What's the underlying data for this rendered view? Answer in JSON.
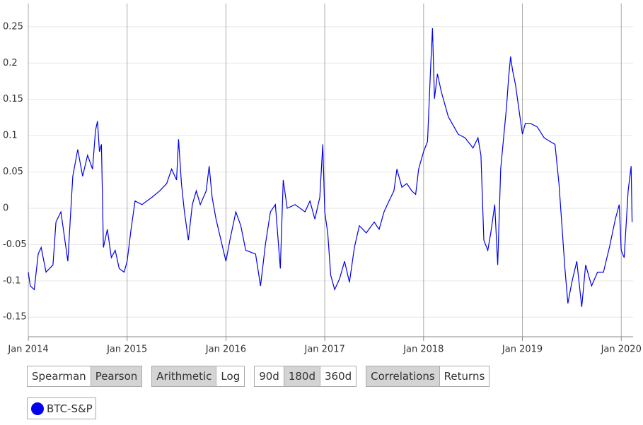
{
  "chart_data": {
    "type": "line",
    "x": [
      2014.0,
      2014.02,
      2014.06,
      2014.1,
      2014.13,
      2014.18,
      2014.25,
      2014.28,
      2014.33,
      2014.36,
      2014.4,
      2014.45,
      2014.5,
      2014.55,
      2014.6,
      2014.65,
      2014.68,
      2014.7,
      2014.72,
      2014.74,
      2014.76,
      2014.8,
      2014.84,
      2014.88,
      2014.92,
      2014.97,
      2015.0,
      2015.04,
      2015.08,
      2015.15,
      2015.25,
      2015.33,
      2015.4,
      2015.45,
      2015.5,
      2015.52,
      2015.55,
      2015.58,
      2015.62,
      2015.66,
      2015.7,
      2015.74,
      2015.8,
      2015.83,
      2015.86,
      2015.9,
      2015.95,
      2016.0,
      2016.04,
      2016.1,
      2016.15,
      2016.2,
      2016.3,
      2016.35,
      2016.4,
      2016.45,
      2016.5,
      2016.55,
      2016.58,
      2016.62,
      2016.7,
      2016.8,
      2016.85,
      2016.9,
      2016.95,
      2016.98,
      2017.0,
      2017.03,
      2017.06,
      2017.1,
      2017.15,
      2017.2,
      2017.25,
      2017.3,
      2017.35,
      2017.42,
      2017.5,
      2017.55,
      2017.6,
      2017.65,
      2017.7,
      2017.73,
      2017.78,
      2017.83,
      2017.88,
      2017.92,
      2017.95,
      2018.0,
      2018.04,
      2018.07,
      2018.09,
      2018.11,
      2018.14,
      2018.18,
      2018.25,
      2018.35,
      2018.42,
      2018.5,
      2018.55,
      2018.58,
      2018.61,
      2018.65,
      2018.68,
      2018.72,
      2018.75,
      2018.78,
      2018.82,
      2018.84,
      2018.86,
      2018.88,
      2018.9,
      2018.93,
      2018.96,
      2019.0,
      2019.03,
      2019.08,
      2019.15,
      2019.22,
      2019.28,
      2019.33,
      2019.37,
      2019.4,
      2019.43,
      2019.46,
      2019.5,
      2019.55,
      2019.6,
      2019.64,
      2019.7,
      2019.76,
      2019.82,
      2019.88,
      2019.94,
      2019.98,
      2020.0,
      2020.03,
      2020.07,
      2020.1,
      2020.11
    ],
    "series": [
      {
        "name": "BTC-S&P",
        "color": "#0000ee",
        "values": [
          -0.088,
          -0.107,
          -0.112,
          -0.063,
          -0.054,
          -0.088,
          -0.078,
          -0.019,
          -0.005,
          -0.034,
          -0.073,
          0.044,
          0.081,
          0.044,
          0.073,
          0.054,
          0.107,
          0.12,
          0.078,
          0.088,
          -0.054,
          -0.029,
          -0.068,
          -0.058,
          -0.083,
          -0.088,
          -0.073,
          -0.029,
          0.01,
          0.005,
          0.015,
          0.024,
          0.034,
          0.054,
          0.039,
          0.095,
          0.034,
          -0.005,
          -0.044,
          0.005,
          0.024,
          0.005,
          0.024,
          0.058,
          0.015,
          -0.015,
          -0.044,
          -0.073,
          -0.044,
          -0.005,
          -0.024,
          -0.058,
          -0.063,
          -0.107,
          -0.049,
          -0.005,
          0.005,
          -0.083,
          0.039,
          0,
          0.005,
          -0.005,
          0.01,
          -0.015,
          0.015,
          0.088,
          -0.005,
          -0.034,
          -0.092,
          -0.112,
          -0.097,
          -0.073,
          -0.102,
          -0.054,
          -0.024,
          -0.034,
          -0.019,
          -0.029,
          -0.005,
          0.01,
          0.024,
          0.054,
          0.029,
          0.034,
          0.024,
          0.019,
          0.054,
          0.078,
          0.092,
          0.19,
          0.248,
          0.151,
          0.185,
          0.16,
          0.126,
          0.102,
          0.097,
          0.083,
          0.097,
          0.073,
          -0.044,
          -0.058,
          -0.034,
          0.005,
          -0.078,
          0.054,
          0.112,
          0.141,
          0.18,
          0.209,
          0.19,
          0.17,
          0.141,
          0.102,
          0.117,
          0.117,
          0.112,
          0.097,
          0.092,
          0.088,
          0.034,
          -0.024,
          -0.083,
          -0.131,
          -0.102,
          -0.073,
          -0.136,
          -0.078,
          -0.107,
          -0.088,
          -0.088,
          -0.054,
          -0.015,
          0.005,
          -0.058,
          -0.068,
          0.024,
          0.058,
          -0.019
        ]
      }
    ],
    "xlim": [
      2014.0,
      2020.12
    ],
    "ylim": [
      -0.177,
      0.282
    ],
    "xticks": [
      {
        "value": 2014,
        "label": "Jan 2014"
      },
      {
        "value": 2015,
        "label": "Jan 2015"
      },
      {
        "value": 2016,
        "label": "Jan 2016"
      },
      {
        "value": 2017,
        "label": "Jan 2017"
      },
      {
        "value": 2018,
        "label": "Jan 2018"
      },
      {
        "value": 2019,
        "label": "Jan 2019"
      },
      {
        "value": 2020,
        "label": "Jan 2020"
      }
    ],
    "yticks": [
      -0.15,
      -0.1,
      -0.05,
      0,
      0.05,
      0.1,
      0.15,
      0.2,
      0.25
    ],
    "grid": true
  },
  "controls": [
    {
      "buttons": [
        "Spearman",
        "Pearson"
      ],
      "active": 1
    },
    {
      "buttons": [
        "Arithmetic",
        "Log"
      ],
      "active": 0
    },
    {
      "buttons": [
        "90d",
        "180d",
        "360d"
      ],
      "active": 1
    },
    {
      "buttons": [
        "Correlations",
        "Returns"
      ],
      "active": 0
    }
  ]
}
